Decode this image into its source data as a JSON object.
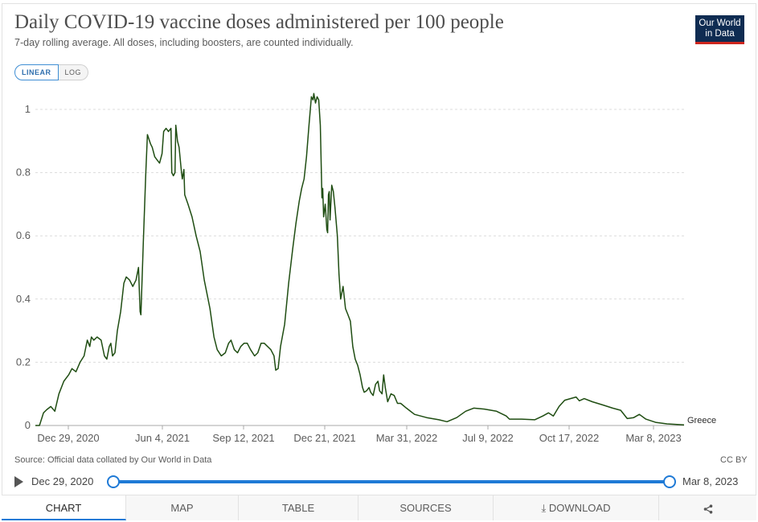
{
  "header": {
    "title": "Daily COVID-19 vaccine doses administered per 100 people",
    "subtitle": "7-day rolling average. All doses, including boosters, are counted individually.",
    "logo_line1": "Our World",
    "logo_line2": "in Data"
  },
  "scale_toggle": {
    "linear_label": "LINEAR",
    "log_label": "LOG",
    "selected": "linear"
  },
  "footer": {
    "source": "Source: Official data collated by Our World in Data",
    "license": "CC BY"
  },
  "timeline": {
    "start_label": "Dec 29, 2020",
    "end_label": "Mar 8, 2023"
  },
  "tabs": [
    {
      "label": "CHART",
      "active": true
    },
    {
      "label": "MAP",
      "active": false
    },
    {
      "label": "TABLE",
      "active": false
    },
    {
      "label": "SOURCES",
      "active": false
    },
    {
      "label": "DOWNLOAD",
      "active": false
    }
  ],
  "colors": {
    "series": "#1f4d12",
    "accent": "#1f7ad6",
    "logo_bg": "#0f2c52",
    "logo_bar": "#ce261e"
  },
  "chart_data": {
    "type": "line",
    "title": "Daily COVID-19 vaccine doses administered per 100 people",
    "subtitle": "7-day rolling average. All doses, including boosters, are counted individually.",
    "x_ticks": [
      "Dec 29, 2020",
      "Jun 4, 2021",
      "Sep 12, 2021",
      "Dec 21, 2021",
      "Mar 31, 2022",
      "Jul 9, 2022",
      "Oct 17, 2022",
      "Mar 8, 2023"
    ],
    "y_ticks": [
      "0",
      "0.2",
      "0.4",
      "0.6",
      "0.8",
      "1"
    ],
    "ylim": [
      0,
      1.05
    ],
    "xlim": [
      "2020-12-29",
      "2023-03-08"
    ],
    "grid": "horizontal dashed",
    "series": [
      {
        "name": "Greece",
        "color": "#1f4d12",
        "points": [
          [
            "2020-12-29",
            0.0
          ],
          [
            "2021-01-03",
            0.0
          ],
          [
            "2021-01-08",
            0.04
          ],
          [
            "2021-01-12",
            0.05
          ],
          [
            "2021-01-17",
            0.06
          ],
          [
            "2021-01-22",
            0.045
          ],
          [
            "2021-01-27",
            0.1
          ],
          [
            "2021-02-02",
            0.14
          ],
          [
            "2021-02-08",
            0.16
          ],
          [
            "2021-02-12",
            0.18
          ],
          [
            "2021-02-17",
            0.17
          ],
          [
            "2021-02-22",
            0.2
          ],
          [
            "2021-02-27",
            0.22
          ],
          [
            "2021-03-03",
            0.27
          ],
          [
            "2021-03-06",
            0.25
          ],
          [
            "2021-03-08",
            0.28
          ],
          [
            "2021-03-11",
            0.27
          ],
          [
            "2021-03-15",
            0.28
          ],
          [
            "2021-03-20",
            0.27
          ],
          [
            "2021-03-24",
            0.22
          ],
          [
            "2021-03-27",
            0.21
          ],
          [
            "2021-03-30",
            0.25
          ],
          [
            "2021-04-01",
            0.26
          ],
          [
            "2021-04-03",
            0.22
          ],
          [
            "2021-04-06",
            0.23
          ],
          [
            "2021-04-09",
            0.3
          ],
          [
            "2021-04-13",
            0.36
          ],
          [
            "2021-04-17",
            0.45
          ],
          [
            "2021-04-20",
            0.47
          ],
          [
            "2021-04-24",
            0.46
          ],
          [
            "2021-04-28",
            0.44
          ],
          [
            "2021-05-02",
            0.46
          ],
          [
            "2021-05-05",
            0.5
          ],
          [
            "2021-05-07",
            0.36
          ],
          [
            "2021-05-08",
            0.35
          ],
          [
            "2021-05-11",
            0.58
          ],
          [
            "2021-05-14",
            0.8
          ],
          [
            "2021-05-16",
            0.92
          ],
          [
            "2021-05-20",
            0.89
          ],
          [
            "2021-05-22",
            0.88
          ],
          [
            "2021-05-25",
            0.85
          ],
          [
            "2021-05-28",
            0.84
          ],
          [
            "2021-05-31",
            0.83
          ],
          [
            "2021-06-03",
            0.86
          ],
          [
            "2021-06-05",
            0.93
          ],
          [
            "2021-06-08",
            0.94
          ],
          [
            "2021-06-11",
            0.93
          ],
          [
            "2021-06-14",
            0.94
          ],
          [
            "2021-06-15",
            0.8
          ],
          [
            "2021-06-17",
            0.79
          ],
          [
            "2021-06-19",
            0.8
          ],
          [
            "2021-06-20",
            0.95
          ],
          [
            "2021-06-22",
            0.9
          ],
          [
            "2021-06-24",
            0.88
          ],
          [
            "2021-06-27",
            0.8
          ],
          [
            "2021-06-28",
            0.78
          ],
          [
            "2021-06-30",
            0.81
          ],
          [
            "2021-07-01",
            0.73
          ],
          [
            "2021-07-05",
            0.7
          ],
          [
            "2021-07-10",
            0.66
          ],
          [
            "2021-07-15",
            0.6
          ],
          [
            "2021-07-20",
            0.55
          ],
          [
            "2021-07-25",
            0.46
          ],
          [
            "2021-08-01",
            0.37
          ],
          [
            "2021-08-06",
            0.28
          ],
          [
            "2021-08-10",
            0.24
          ],
          [
            "2021-08-15",
            0.22
          ],
          [
            "2021-08-20",
            0.23
          ],
          [
            "2021-08-24",
            0.26
          ],
          [
            "2021-08-27",
            0.27
          ],
          [
            "2021-08-31",
            0.24
          ],
          [
            "2021-09-04",
            0.23
          ],
          [
            "2021-09-08",
            0.25
          ],
          [
            "2021-09-12",
            0.26
          ],
          [
            "2021-09-16",
            0.26
          ],
          [
            "2021-09-20",
            0.24
          ],
          [
            "2021-09-25",
            0.22
          ],
          [
            "2021-09-29",
            0.23
          ],
          [
            "2021-10-03",
            0.26
          ],
          [
            "2021-10-07",
            0.26
          ],
          [
            "2021-10-11",
            0.25
          ],
          [
            "2021-10-15",
            0.24
          ],
          [
            "2021-10-19",
            0.22
          ],
          [
            "2021-10-21",
            0.175
          ],
          [
            "2021-10-24",
            0.18
          ],
          [
            "2021-10-27",
            0.25
          ],
          [
            "2021-11-01",
            0.32
          ],
          [
            "2021-11-06",
            0.45
          ],
          [
            "2021-11-11",
            0.56
          ],
          [
            "2021-11-15",
            0.64
          ],
          [
            "2021-11-19",
            0.71
          ],
          [
            "2021-11-22",
            0.75
          ],
          [
            "2021-11-25",
            0.78
          ],
          [
            "2021-11-28",
            0.85
          ],
          [
            "2021-12-01",
            0.95
          ],
          [
            "2021-12-04",
            1.04
          ],
          [
            "2021-12-06",
            1.03
          ],
          [
            "2021-12-07",
            1.05
          ],
          [
            "2021-12-09",
            1.02
          ],
          [
            "2021-12-11",
            1.04
          ],
          [
            "2021-12-13",
            1.03
          ],
          [
            "2021-12-15",
            0.95
          ],
          [
            "2021-12-17",
            0.72
          ],
          [
            "2021-12-18",
            0.75
          ],
          [
            "2021-12-19",
            0.66
          ],
          [
            "2021-12-21",
            0.7
          ],
          [
            "2021-12-23",
            0.62
          ],
          [
            "2021-12-24",
            0.61
          ],
          [
            "2021-12-25",
            0.73
          ],
          [
            "2021-12-26",
            0.74
          ],
          [
            "2021-12-27",
            0.65
          ],
          [
            "2021-12-29",
            0.76
          ],
          [
            "2021-12-31",
            0.74
          ],
          [
            "2022-01-02",
            0.69
          ],
          [
            "2022-01-05",
            0.6
          ],
          [
            "2022-01-07",
            0.48
          ],
          [
            "2022-01-09",
            0.4
          ],
          [
            "2022-01-12",
            0.44
          ],
          [
            "2022-01-15",
            0.37
          ],
          [
            "2022-01-18",
            0.35
          ],
          [
            "2022-01-21",
            0.33
          ],
          [
            "2022-01-24",
            0.25
          ],
          [
            "2022-01-27",
            0.21
          ],
          [
            "2022-01-30",
            0.19
          ],
          [
            "2022-02-02",
            0.16
          ],
          [
            "2022-02-05",
            0.12
          ],
          [
            "2022-02-07",
            0.105
          ],
          [
            "2022-02-10",
            0.11
          ],
          [
            "2022-02-13",
            0.12
          ],
          [
            "2022-02-15",
            0.105
          ],
          [
            "2022-02-18",
            0.095
          ],
          [
            "2022-02-21",
            0.13
          ],
          [
            "2022-02-24",
            0.14
          ],
          [
            "2022-02-26",
            0.11
          ],
          [
            "2022-03-01",
            0.1
          ],
          [
            "2022-03-03",
            0.16
          ],
          [
            "2022-03-05",
            0.12
          ],
          [
            "2022-03-08",
            0.075
          ],
          [
            "2022-03-12",
            0.1
          ],
          [
            "2022-03-16",
            0.095
          ],
          [
            "2022-03-20",
            0.07
          ],
          [
            "2022-03-24",
            0.07
          ],
          [
            "2022-03-31",
            0.055
          ],
          [
            "2022-04-10",
            0.035
          ],
          [
            "2022-04-25",
            0.025
          ],
          [
            "2022-05-10",
            0.018
          ],
          [
            "2022-05-20",
            0.012
          ],
          [
            "2022-06-01",
            0.025
          ],
          [
            "2022-06-12",
            0.045
          ],
          [
            "2022-06-22",
            0.055
          ],
          [
            "2022-07-05",
            0.052
          ],
          [
            "2022-07-20",
            0.045
          ],
          [
            "2022-08-01",
            0.03
          ],
          [
            "2022-08-05",
            0.02
          ],
          [
            "2022-08-20",
            0.02
          ],
          [
            "2022-09-05",
            0.018
          ],
          [
            "2022-09-15",
            0.03
          ],
          [
            "2022-09-22",
            0.04
          ],
          [
            "2022-09-28",
            0.03
          ],
          [
            "2022-10-05",
            0.06
          ],
          [
            "2022-10-12",
            0.08
          ],
          [
            "2022-10-19",
            0.085
          ],
          [
            "2022-10-26",
            0.09
          ],
          [
            "2022-10-30",
            0.078
          ],
          [
            "2022-11-05",
            0.085
          ],
          [
            "2022-11-15",
            0.075
          ],
          [
            "2022-11-28",
            0.065
          ],
          [
            "2022-12-10",
            0.055
          ],
          [
            "2022-12-20",
            0.048
          ],
          [
            "2022-12-28",
            0.022
          ],
          [
            "2023-01-05",
            0.025
          ],
          [
            "2023-01-12",
            0.035
          ],
          [
            "2023-01-20",
            0.02
          ],
          [
            "2023-02-01",
            0.01
          ],
          [
            "2023-02-15",
            0.005
          ],
          [
            "2023-03-08",
            0.002
          ]
        ]
      }
    ]
  }
}
